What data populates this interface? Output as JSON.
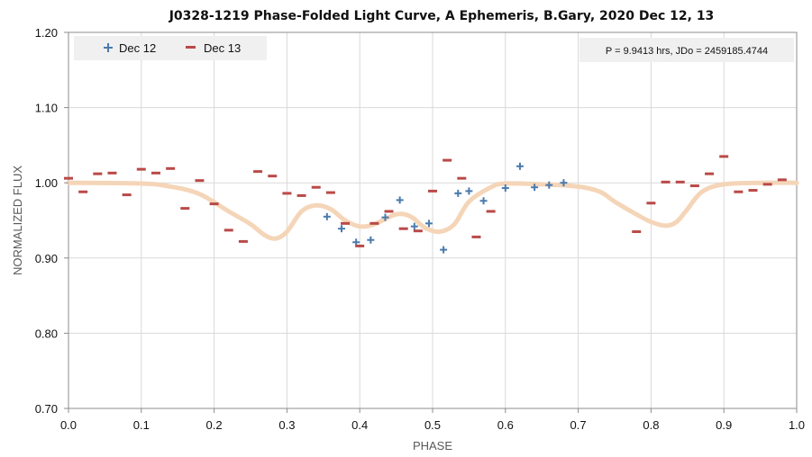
{
  "chart_data": {
    "type": "scatter",
    "title": "J0328-1219 Phase-Folded Light Curve, A Ephemeris, B.Gary, 2020 Dec 12, 13",
    "xlabel": "PHASE",
    "ylabel": "NORMALIZED FLUX",
    "xlim": [
      0.0,
      1.0
    ],
    "ylim": [
      0.7,
      1.2
    ],
    "x_ticks": [
      "0.0",
      "0.1",
      "0.2",
      "0.3",
      "0.4",
      "0.5",
      "0.6",
      "0.7",
      "0.8",
      "0.9",
      "1.0"
    ],
    "y_ticks": [
      "0.70",
      "0.80",
      "0.90",
      "1.00",
      "1.10",
      "1.20"
    ],
    "grid": "vertical major gridlines",
    "legend_position": "top-left",
    "annotation": "P = 9.9413 hrs, JDo = 2459185.4744",
    "series": [
      {
        "name": "Dec 12",
        "marker": "plus",
        "color": "#4a7aad",
        "x": [
          0.355,
          0.375,
          0.395,
          0.415,
          0.435,
          0.455,
          0.475,
          0.495,
          0.515,
          0.535,
          0.55,
          0.57,
          0.6,
          0.62,
          0.64,
          0.66,
          0.68
        ],
        "y": [
          0.955,
          0.939,
          0.921,
          0.924,
          0.954,
          0.977,
          0.942,
          0.946,
          0.911,
          0.986,
          0.989,
          0.976,
          0.993,
          1.022,
          0.994,
          0.997,
          1.0
        ]
      },
      {
        "name": "Dec 13",
        "marker": "dash",
        "color": "#b94a48",
        "x": [
          0.0,
          0.02,
          0.04,
          0.06,
          0.08,
          0.1,
          0.12,
          0.14,
          0.16,
          0.18,
          0.2,
          0.22,
          0.24,
          0.26,
          0.28,
          0.3,
          0.32,
          0.34,
          0.36,
          0.38,
          0.4,
          0.42,
          0.44,
          0.46,
          0.48,
          0.5,
          0.52,
          0.54,
          0.56,
          0.58,
          0.78,
          0.8,
          0.82,
          0.84,
          0.86,
          0.88,
          0.9,
          0.92,
          0.94,
          0.96,
          0.98
        ],
        "y": [
          1.006,
          0.988,
          1.012,
          1.013,
          0.984,
          1.018,
          1.013,
          1.019,
          0.966,
          1.003,
          0.972,
          0.937,
          0.922,
          1.015,
          1.009,
          0.986,
          0.983,
          0.994,
          0.987,
          0.946,
          0.916,
          0.946,
          0.962,
          0.939,
          0.936,
          0.989,
          1.03,
          1.006,
          0.928,
          0.962,
          0.935,
          0.973,
          1.001,
          1.001,
          0.996,
          1.012,
          1.035,
          0.988,
          0.99,
          0.998,
          1.004
        ]
      },
      {
        "type": "line",
        "color": "#f5d5b8",
        "x": [
          0.0,
          0.1,
          0.14,
          0.18,
          0.22,
          0.25,
          0.27,
          0.285,
          0.3,
          0.32,
          0.34,
          0.36,
          0.38,
          0.4,
          0.42,
          0.45,
          0.47,
          0.49,
          0.51,
          0.53,
          0.55,
          0.58,
          0.6,
          0.65,
          0.7,
          0.73,
          0.75,
          0.78,
          0.8,
          0.82,
          0.835,
          0.85,
          0.87,
          0.9,
          0.95,
          1.0
        ],
        "y": [
          1.0,
          0.999,
          0.995,
          0.985,
          0.962,
          0.945,
          0.93,
          0.926,
          0.935,
          0.962,
          0.97,
          0.965,
          0.95,
          0.942,
          0.945,
          0.958,
          0.955,
          0.94,
          0.935,
          0.945,
          0.975,
          0.994,
          0.999,
          0.998,
          0.995,
          0.988,
          0.975,
          0.958,
          0.948,
          0.943,
          0.948,
          0.965,
          0.988,
          0.998,
          1.0,
          1.0
        ]
      }
    ]
  }
}
